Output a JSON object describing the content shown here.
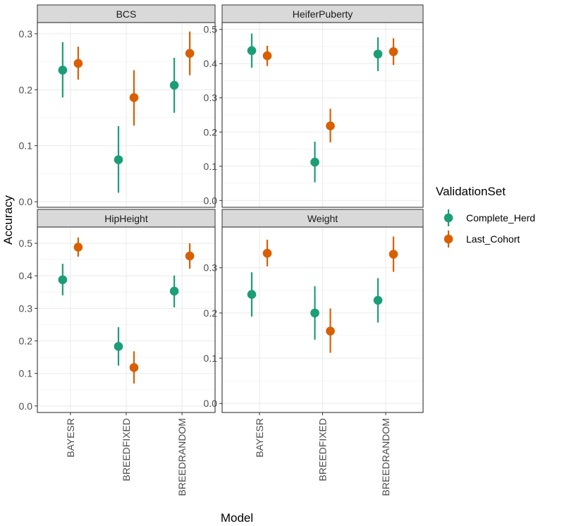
{
  "chart_data": {
    "type": "scatter",
    "subtype": "pointrange-facets",
    "xlabel": "Model",
    "ylabel": "Accuracy",
    "categories": [
      "BAYESR",
      "BREEDFIXED",
      "BREEDRANDOM"
    ],
    "legend": {
      "title": "ValidationSet",
      "placement": "right",
      "entries": [
        {
          "name": "Complete_Herd",
          "color": "#1b9e77"
        },
        {
          "name": "Last_Cohort",
          "color": "#d95f02"
        }
      ]
    },
    "facets": [
      {
        "title": "BCS",
        "ylim": [
          -0.01,
          0.32
        ],
        "yticks": [
          "0.0",
          "0.1",
          "0.2",
          "0.3"
        ],
        "series": [
          {
            "name": "Complete_Herd",
            "values": [
              0.235,
              0.075,
              0.208
            ],
            "lower": [
              0.186,
              0.016,
              0.159
            ],
            "upper": [
              0.285,
              0.135,
              0.257
            ]
          },
          {
            "name": "Last_Cohort",
            "values": [
              0.247,
              0.186,
              0.265
            ],
            "lower": [
              0.218,
              0.136,
              0.226
            ],
            "upper": [
              0.277,
              0.235,
              0.304
            ]
          }
        ]
      },
      {
        "title": "HeiferPuberty",
        "ylim": [
          -0.02,
          0.52
        ],
        "yticks": [
          "0.0",
          "0.1",
          "0.2",
          "0.3",
          "0.4",
          "0.5"
        ],
        "series": [
          {
            "name": "Complete_Herd",
            "values": [
              0.438,
              0.112,
              0.428
            ],
            "lower": [
              0.388,
              0.053,
              0.378
            ],
            "upper": [
              0.488,
              0.172,
              0.477
            ]
          },
          {
            "name": "Last_Cohort",
            "values": [
              0.423,
              0.218,
              0.435
            ],
            "lower": [
              0.393,
              0.17,
              0.396
            ],
            "upper": [
              0.452,
              0.268,
              0.474
            ]
          }
        ]
      },
      {
        "title": "HipHeight",
        "ylim": [
          -0.02,
          0.55
        ],
        "yticks": [
          "0.0",
          "0.1",
          "0.2",
          "0.3",
          "0.4",
          "0.5"
        ],
        "series": [
          {
            "name": "Complete_Herd",
            "values": [
              0.388,
              0.183,
              0.353
            ],
            "lower": [
              0.34,
              0.124,
              0.303
            ],
            "upper": [
              0.437,
              0.242,
              0.401
            ]
          },
          {
            "name": "Last_Cohort",
            "values": [
              0.488,
              0.118,
              0.461
            ],
            "lower": [
              0.459,
              0.069,
              0.422
            ],
            "upper": [
              0.518,
              0.168,
              0.5
            ]
          }
        ]
      },
      {
        "title": "Weight",
        "ylim": [
          -0.02,
          0.39
        ],
        "yticks": [
          "0.0",
          "0.1",
          "0.2",
          "0.3"
        ],
        "series": [
          {
            "name": "Complete_Herd",
            "values": [
              0.241,
              0.2,
              0.228
            ],
            "lower": [
              0.192,
              0.141,
              0.179
            ],
            "upper": [
              0.29,
              0.259,
              0.277
            ]
          },
          {
            "name": "Last_Cohort",
            "values": [
              0.332,
              0.16,
              0.33
            ],
            "lower": [
              0.303,
              0.112,
              0.291
            ],
            "upper": [
              0.362,
              0.21,
              0.369
            ]
          }
        ]
      }
    ]
  }
}
